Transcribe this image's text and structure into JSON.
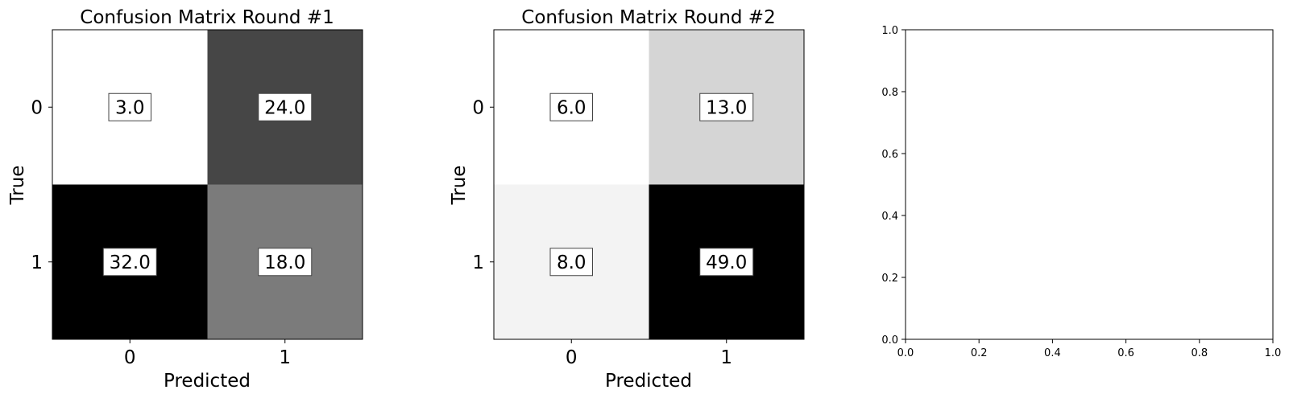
{
  "chart_data": [
    {
      "type": "heatmap",
      "title": "Confusion Matrix Round #1",
      "xlabel": "Predicted",
      "ylabel": "True",
      "x_ticks": [
        "0",
        "1"
      ],
      "y_ticks": [
        "0",
        "1"
      ],
      "matrix": [
        [
          3.0,
          24.0
        ],
        [
          32.0,
          18.0
        ]
      ],
      "cell_labels": [
        [
          "3.0",
          "24.0"
        ],
        [
          "32.0",
          "18.0"
        ]
      ],
      "colormap": "grayscale (white = low, black = high)"
    },
    {
      "type": "heatmap",
      "title": "Confusion Matrix Round #2",
      "xlabel": "Predicted",
      "ylabel": "True",
      "x_ticks": [
        "0",
        "1"
      ],
      "y_ticks": [
        "0",
        "1"
      ],
      "matrix": [
        [
          6.0,
          13.0
        ],
        [
          8.0,
          49.0
        ]
      ],
      "cell_labels": [
        [
          "6.0",
          "13.0"
        ],
        [
          "8.0",
          "49.0"
        ]
      ],
      "colormap": "grayscale (white = low, black = high)"
    },
    {
      "type": "scatter",
      "title": "",
      "xlabel": "",
      "ylabel": "",
      "xlim": [
        0.0,
        1.0
      ],
      "ylim": [
        0.0,
        1.0
      ],
      "x_ticks": [
        "0.0",
        "0.2",
        "0.4",
        "0.6",
        "0.8",
        "1.0"
      ],
      "y_ticks": [
        "0.0",
        "0.2",
        "0.4",
        "0.6",
        "0.8",
        "1.0"
      ],
      "series": []
    }
  ]
}
